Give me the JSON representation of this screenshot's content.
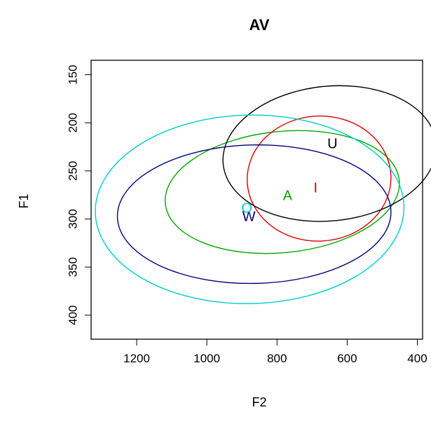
{
  "chart_data": {
    "type": "scatter",
    "title": "AV",
    "xlabel": "F2",
    "ylabel": "F1",
    "xlim": [
      1330,
      385
    ],
    "ylim": [
      425,
      135
    ],
    "x_reversed": true,
    "y_reversed": true,
    "x_ticks": [
      1200,
      1000,
      800,
      600,
      400
    ],
    "y_ticks": [
      150,
      200,
      250,
      300,
      350,
      400
    ],
    "grid": false,
    "legend": "none",
    "series": [
      {
        "name": "A",
        "color": "#00aa00",
        "label_pos": [
          770,
          276
        ],
        "ellipse": {
          "cx": 785,
          "cy": 272,
          "rx": 335,
          "ry": 63,
          "angle": 0.1
        }
      },
      {
        "name": "I",
        "color": "#dd0000",
        "label_pos": [
          690,
          268
        ],
        "ellipse": {
          "cx": 680,
          "cy": 258,
          "rx": 205,
          "ry": 65,
          "angle": 0.05
        }
      },
      {
        "name": "U",
        "color": "#000000",
        "label_pos": [
          642,
          222
        ],
        "ellipse": {
          "cx": 650,
          "cy": 232,
          "rx": 305,
          "ry": 70,
          "angle": 0.1
        }
      },
      {
        "name": "W",
        "color": "#000080",
        "label_pos": [
          880,
          298
        ],
        "ellipse": {
          "cx": 865,
          "cy": 295,
          "rx": 390,
          "ry": 72,
          "angle": 0.02
        }
      },
      {
        "name": "O",
        "color": "#00cccc",
        "label_pos": [
          886,
          289
        ],
        "ellipse": {
          "cx": 878,
          "cy": 290,
          "rx": 440,
          "ry": 98,
          "angle": 0.02
        }
      }
    ]
  }
}
